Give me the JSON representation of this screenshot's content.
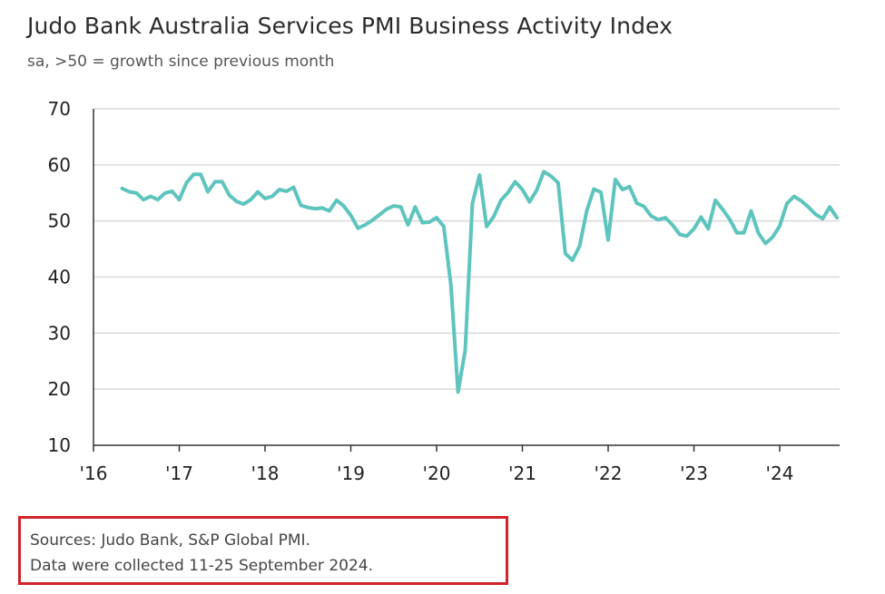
{
  "header": {
    "title": "Judo Bank Australia Services PMI Business Activity Index",
    "subtitle": "sa, >50 = growth since previous month"
  },
  "footer": {
    "sources": "Sources: Judo Bank, S&P Global PMI.",
    "collected": "Data were collected 11-25 September 2024."
  },
  "colors": {
    "line": "#5ec4be",
    "grid": "#d9d9d9",
    "axis": "#333333",
    "highlight_box": "#d0232a"
  },
  "chart_data": {
    "type": "line",
    "title": "Judo Bank Australia Services PMI Business Activity Index",
    "subtitle": "sa, >50 = growth since previous month",
    "xlabel": "",
    "ylabel": "",
    "ylim": [
      10,
      70
    ],
    "yticks": [
      "70",
      "60",
      "50",
      "40",
      "30",
      "20",
      "10"
    ],
    "xticks": [
      "'16",
      "'17",
      "'18",
      "'19",
      "'20",
      "'21",
      "'22",
      "'23",
      "'24"
    ],
    "xrange": [
      "2016-01",
      "2024-09"
    ],
    "grid": "horizontal",
    "start": "2016-05",
    "frequency": "monthly",
    "values": [
      55.8,
      55.2,
      55.0,
      53.8,
      54.4,
      53.8,
      55.0,
      55.3,
      53.8,
      56.8,
      58.3,
      58.3,
      55.2,
      57.0,
      57.0,
      54.6,
      53.5,
      53.0,
      53.8,
      55.2,
      54.0,
      54.4,
      55.6,
      55.3,
      56.0,
      52.8,
      52.4,
      52.2,
      52.3,
      51.8,
      53.7,
      52.7,
      51.0,
      48.7,
      49.3,
      50.1,
      51.1,
      52.1,
      52.7,
      52.5,
      49.3,
      52.5,
      49.7,
      49.8,
      50.6,
      49.0,
      38.5,
      19.5,
      26.9,
      53.1,
      58.2,
      49.0,
      50.8,
      53.7,
      55.1,
      57.0,
      55.6,
      53.4,
      55.5,
      58.8,
      58.0,
      56.8,
      44.2,
      43.0,
      45.5,
      51.8,
      55.7,
      55.1,
      46.6,
      57.4,
      55.6,
      56.1,
      53.2,
      52.6,
      50.9,
      50.2,
      50.6,
      49.3,
      47.6,
      47.3,
      48.6,
      50.7,
      48.6,
      53.7,
      52.1,
      50.3,
      47.9,
      47.9,
      51.8,
      47.9,
      46.0,
      47.1,
      49.1,
      53.1,
      54.4,
      53.6,
      52.5,
      51.2,
      50.4,
      52.5,
      50.6
    ]
  }
}
